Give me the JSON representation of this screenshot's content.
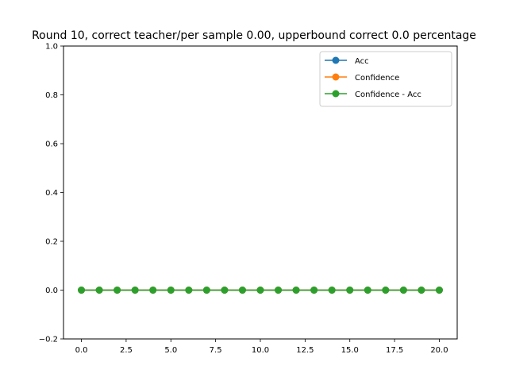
{
  "chart_data": {
    "type": "line",
    "title": "Round 10, correct teacher/per sample 0.00, upperbound correct 0.0 percentage",
    "xlabel": "",
    "ylabel": "",
    "x": [
      0,
      1,
      2,
      3,
      4,
      5,
      6,
      7,
      8,
      9,
      10,
      11,
      12,
      13,
      14,
      15,
      16,
      17,
      18,
      19,
      20
    ],
    "xlim": [
      -1,
      21
    ],
    "ylim": [
      -0.2,
      1.0
    ],
    "xticks": [
      0.0,
      2.5,
      5.0,
      7.5,
      10.0,
      12.5,
      15.0,
      17.5,
      20.0
    ],
    "xtick_labels": [
      "0.0",
      "2.5",
      "5.0",
      "7.5",
      "10.0",
      "12.5",
      "15.0",
      "17.5",
      "20.0"
    ],
    "yticks": [
      -0.2,
      0.0,
      0.2,
      0.4,
      0.6,
      0.8,
      1.0
    ],
    "ytick_labels": [
      "−0.2",
      "0.0",
      "0.2",
      "0.4",
      "0.6",
      "0.8",
      "1.0"
    ],
    "grid": false,
    "legend_position": "top-right",
    "series": [
      {
        "name": "Acc",
        "color": "#1f77b4",
        "marker": "circle",
        "values": [
          0,
          0,
          0,
          0,
          0,
          0,
          0,
          0,
          0,
          0,
          0,
          0,
          0,
          0,
          0,
          0,
          0,
          0,
          0,
          0,
          0
        ]
      },
      {
        "name": "Confidence",
        "color": "#ff7f0e",
        "marker": "circle",
        "values": [
          0,
          0,
          0,
          0,
          0,
          0,
          0,
          0,
          0,
          0,
          0,
          0,
          0,
          0,
          0,
          0,
          0,
          0,
          0,
          0,
          0
        ]
      },
      {
        "name": "Confidence - Acc",
        "color": "#2ca02c",
        "marker": "circle",
        "values": [
          0,
          0,
          0,
          0,
          0,
          0,
          0,
          0,
          0,
          0,
          0,
          0,
          0,
          0,
          0,
          0,
          0,
          0,
          0,
          0,
          0
        ]
      }
    ]
  }
}
